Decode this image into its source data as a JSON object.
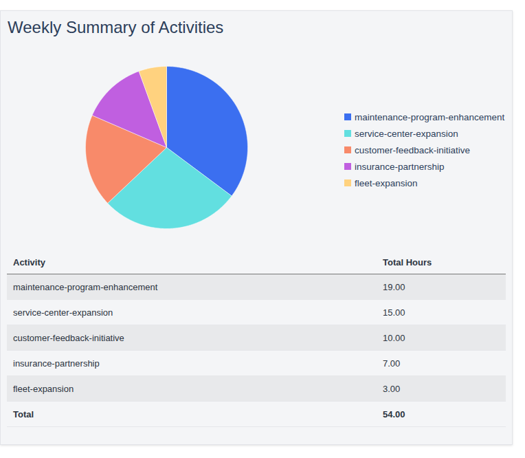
{
  "chart_data": {
    "type": "pie",
    "title": "Weekly Summary of Activities",
    "categories": [
      "maintenance-program-enhancement",
      "service-center-expansion",
      "customer-feedback-initiative",
      "insurance-partnership",
      "fleet-expansion"
    ],
    "values": [
      19,
      15,
      10,
      7,
      3
    ],
    "colors": [
      "#3b6ff0",
      "#62dfe0",
      "#f88a6a",
      "#c05fe0",
      "#ffd27f"
    ],
    "legend": "right"
  },
  "table": {
    "header": [
      "Activity",
      "Total Hours"
    ],
    "rows": [
      [
        "maintenance-program-enhancement",
        "19.00"
      ],
      [
        "service-center-expansion",
        "15.00"
      ],
      [
        "customer-feedback-initiative",
        "10.00"
      ],
      [
        "insurance-partnership",
        "7.00"
      ],
      [
        "fleet-expansion",
        "3.00"
      ]
    ],
    "total": [
      "Total",
      "54.00"
    ]
  }
}
